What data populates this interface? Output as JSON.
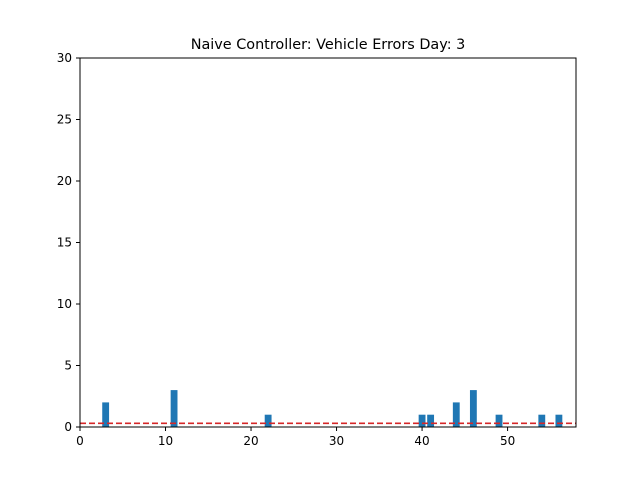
{
  "chart_data": {
    "type": "bar",
    "title": "Naive Controller: Vehicle Errors Day: 3",
    "xlabel": "",
    "ylabel": "",
    "xlim": [
      0,
      58
    ],
    "ylim": [
      0,
      30
    ],
    "x_ticks": [
      0,
      10,
      20,
      30,
      40,
      50
    ],
    "y_ticks": [
      0,
      5,
      10,
      15,
      20,
      25,
      30
    ],
    "bar_color": "#1f77b4",
    "threshold": {
      "value": 0.3,
      "color": "#d62728",
      "style": "dashed"
    },
    "series": [
      {
        "x": [
          3,
          11,
          22,
          40,
          41,
          44,
          46,
          49,
          54,
          56
        ],
        "values": [
          2,
          3,
          1,
          1,
          1,
          2,
          3,
          1,
          1,
          1
        ]
      }
    ],
    "grid": false,
    "legend": "none"
  }
}
